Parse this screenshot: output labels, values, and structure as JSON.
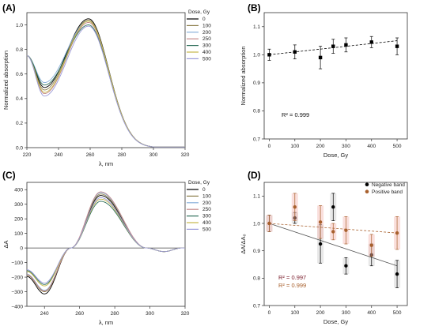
{
  "chart_data": [
    {
      "panel": "(A)",
      "type": "line",
      "xlabel": "λ, nm",
      "ylabel": "Normalized absorption",
      "xlim": [
        220,
        320
      ],
      "ylim": [
        0,
        1.1
      ],
      "xticks": [
        220,
        240,
        260,
        280,
        300,
        320
      ],
      "yticks": [
        0.0,
        0.2,
        0.4,
        0.6,
        0.8,
        1.0
      ],
      "ytick_labels": [
        "0.0",
        "0.2",
        "0.4",
        "0.6",
        "0.8",
        "1.0"
      ],
      "legend_title": "Dose, Gy",
      "legend_position": "top-right",
      "series": [
        {
          "name": "0",
          "color": "#000000",
          "min": 0.49,
          "peak": 1.05
        },
        {
          "name": "100",
          "color": "#8b7d4a",
          "min": 0.47,
          "peak": 1.04
        },
        {
          "name": "200",
          "color": "#88b0da",
          "min": 0.53,
          "peak": 1.03
        },
        {
          "name": "250",
          "color": "#c58a8a",
          "min": 0.44,
          "peak": 1.02
        },
        {
          "name": "300",
          "color": "#2f6f5a",
          "min": 0.51,
          "peak": 1.0
        },
        {
          "name": "400",
          "color": "#c6b84a",
          "min": 0.45,
          "peak": 1.03
        },
        {
          "name": "500",
          "color": "#9a9ad8",
          "min": 0.42,
          "peak": 0.99
        }
      ],
      "shape": {
        "start_x": 220,
        "start_y": 0.75,
        "min_x": 231,
        "peak_x": 259,
        "end_x": 320
      }
    },
    {
      "panel": "(B)",
      "type": "scatter",
      "xlabel": "Dose, Gy",
      "ylabel": "Normalized absorption",
      "xlim": [
        -20,
        540
      ],
      "ylim": [
        0.7,
        1.15
      ],
      "xticks": [
        0,
        100,
        200,
        300,
        400,
        500
      ],
      "yticks": [
        0.7,
        0.8,
        0.9,
        1.0,
        1.1
      ],
      "ytick_labels": [
        "0.7",
        "0.8",
        "0.9",
        "1.0",
        "1.1"
      ],
      "annotation": "R² = 0.999",
      "series": [
        {
          "color": "#000000",
          "x": [
            0,
            100,
            200,
            250,
            300,
            400,
            500
          ],
          "y": [
            1.0,
            1.01,
            0.99,
            1.03,
            1.035,
            1.045,
            1.03
          ],
          "err": [
            0.02,
            0.025,
            0.04,
            0.025,
            0.025,
            0.02,
            0.03
          ],
          "fit": [
            [
              0,
              1.0
            ],
            [
              500,
              1.05
            ]
          ]
        }
      ]
    },
    {
      "panel": "(C)",
      "type": "line",
      "xlabel": "λ, nm",
      "ylabel": "ΔA",
      "xlim": [
        230,
        320
      ],
      "ylim": [
        -400,
        450
      ],
      "xticks": [
        240,
        260,
        280,
        300,
        320
      ],
      "yticks": [
        -400,
        -300,
        -200,
        -100,
        0,
        100,
        200,
        300,
        400
      ],
      "ytick_labels": [
        "−400",
        "−300",
        "−200",
        "−100",
        "0",
        "100",
        "200",
        "300",
        "400"
      ],
      "legend_title": "Dose, Gy",
      "legend_position": "top-right",
      "series": [
        {
          "name": "0",
          "color": "#000000",
          "min": -315,
          "peak": 360
        },
        {
          "name": "100",
          "color": "#8b7d4a",
          "min": -300,
          "peak": 370
        },
        {
          "name": "200",
          "color": "#88b0da",
          "min": -290,
          "peak": 380
        },
        {
          "name": "250",
          "color": "#c58a8a",
          "min": -295,
          "peak": 385
        },
        {
          "name": "300",
          "color": "#2f6f5a",
          "min": -250,
          "peak": 320
        },
        {
          "name": "400",
          "color": "#c6b84a",
          "min": -260,
          "peak": 335
        },
        {
          "name": "500",
          "color": "#9a9ad8",
          "min": -240,
          "peak": 345
        }
      ],
      "shape": {
        "start_x": 230,
        "min_x": 240,
        "zero_x": 255,
        "peak_x": 272,
        "settle_x": 298,
        "tail_y": -25,
        "end_x": 320
      }
    },
    {
      "panel": "(D)",
      "type": "scatter",
      "xlabel": "Dose, Gy",
      "ylabel": "ΔA/ΔA₀",
      "xlim": [
        -20,
        540
      ],
      "ylim": [
        0.7,
        1.15
      ],
      "xticks": [
        0,
        100,
        200,
        300,
        400,
        500
      ],
      "yticks": [
        0.7,
        0.8,
        0.9,
        1.0,
        1.1
      ],
      "ytick_labels": [
        "0.7",
        "0.8",
        "0.9",
        "1.0",
        "1.1"
      ],
      "legend_position": "top-right",
      "series": [
        {
          "name": "Negative band",
          "color": "#000000",
          "fit_color": "#555555",
          "band": "#cccccc",
          "x": [
            0,
            100,
            200,
            250,
            300,
            400,
            500
          ],
          "y": [
            1.0,
            1.02,
            0.925,
            1.06,
            0.845,
            0.885,
            0.815
          ],
          "err": [
            0.03,
            0.02,
            0.07,
            0.05,
            0.03,
            0.04,
            0.05
          ],
          "fit": [
            [
              0,
              1.0
            ],
            [
              500,
              0.845
            ]
          ],
          "r2": "R² = 0.997",
          "r2_color": "#7b1f2e"
        },
        {
          "name": "Positive band",
          "color": "#a8602d",
          "fit_color": "#a8602d",
          "band": "#f3b9b2",
          "x": [
            0,
            100,
            200,
            250,
            300,
            400,
            500
          ],
          "y": [
            1.0,
            1.06,
            1.005,
            0.97,
            0.975,
            0.92,
            0.965
          ],
          "err": [
            0.03,
            0.05,
            0.06,
            0.03,
            0.05,
            0.04,
            0.06
          ],
          "fit": [
            [
              0,
              1.0
            ],
            [
              500,
              0.965
            ]
          ],
          "r2": "R² = 0.999",
          "r2_color": "#a8602d"
        }
      ]
    }
  ]
}
